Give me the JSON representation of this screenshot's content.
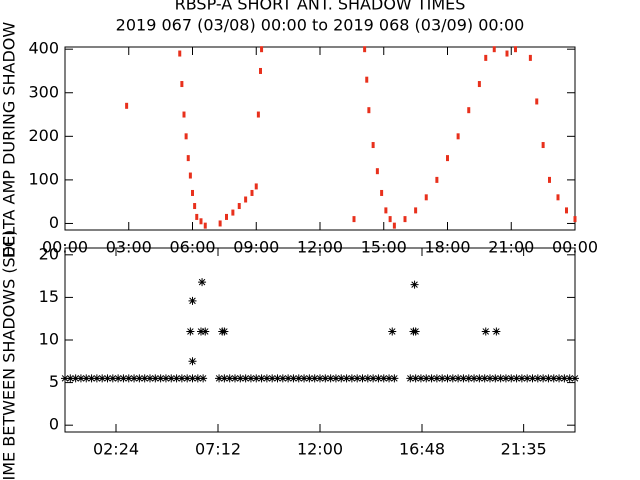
{
  "chart_data": [
    {
      "type": "scatter",
      "title": "RBSP-A SHORT ANT. SHADOW TIMES",
      "subtitle": "2019 067 (03/08) 00:00 to 2019 068 (03/09) 00:00",
      "ylabel": "DELTA AMP DURING SHADOW",
      "color": "#e8301c",
      "marker": "dot",
      "x": [
        2.9,
        5.4,
        5.5,
        5.6,
        5.7,
        5.8,
        5.9,
        6.0,
        6.1,
        6.2,
        6.4,
        6.6,
        7.3,
        7.6,
        7.9,
        8.2,
        8.5,
        8.8,
        9.0,
        9.1,
        9.2,
        9.25,
        13.6,
        14.1,
        14.2,
        14.3,
        14.5,
        14.7,
        14.9,
        15.1,
        15.3,
        15.5,
        16.0,
        16.5,
        17.0,
        17.5,
        18.0,
        18.5,
        19.0,
        19.5,
        19.8,
        20.2,
        20.8,
        21.2,
        21.9,
        22.2,
        22.5,
        22.8,
        23.2,
        23.6,
        24
      ],
      "values": [
        270,
        390,
        320,
        250,
        200,
        150,
        110,
        70,
        40,
        15,
        5,
        -5,
        0,
        15,
        25,
        40,
        55,
        70,
        85,
        250,
        350,
        400,
        10,
        400,
        330,
        260,
        180,
        120,
        70,
        30,
        10,
        -5,
        10,
        30,
        60,
        100,
        150,
        200,
        260,
        320,
        380,
        400,
        390,
        400,
        380,
        280,
        180,
        100,
        60,
        30,
        10
      ],
      "xlim": [
        0,
        24
      ],
      "ylim": [
        -15,
        405
      ],
      "xticks": [
        {
          "value": 0,
          "label": "00:00"
        },
        {
          "value": 3,
          "label": "03:00"
        },
        {
          "value": 6,
          "label": "06:00"
        },
        {
          "value": 9,
          "label": "09:00"
        },
        {
          "value": 12,
          "label": "12:00"
        },
        {
          "value": 15,
          "label": "15:00"
        },
        {
          "value": 18,
          "label": "18:00"
        },
        {
          "value": 21,
          "label": "21:00"
        },
        {
          "value": 24,
          "label": "00:00"
        }
      ],
      "yticks": [
        0,
        100,
        200,
        300,
        400
      ]
    },
    {
      "type": "scatter",
      "ylabel": "TIME BETWEEN SHADOWS (SEC)",
      "color": "#000000",
      "marker": "asterisk",
      "x": [
        0,
        0.25,
        0.5,
        0.75,
        1,
        1.25,
        1.5,
        1.75,
        2,
        2.25,
        2.5,
        2.75,
        3,
        3.25,
        3.5,
        3.75,
        4,
        4.25,
        4.5,
        4.75,
        5,
        5.25,
        5.5,
        5.75,
        6,
        6.25,
        6.5,
        7.25,
        7.5,
        7.75,
        8,
        8.25,
        8.5,
        8.75,
        9,
        9.25,
        9.5,
        9.75,
        10,
        10.25,
        10.5,
        10.75,
        11,
        11.25,
        11.5,
        11.75,
        12,
        12.25,
        12.5,
        12.75,
        13,
        13.25,
        13.5,
        13.75,
        14,
        14.25,
        14.5,
        14.75,
        15,
        15.25,
        15.5,
        16.25,
        16.5,
        16.75,
        17,
        17.25,
        17.5,
        17.75,
        18,
        18.25,
        18.5,
        18.75,
        19,
        19.25,
        19.5,
        19.75,
        20,
        20.25,
        20.5,
        20.75,
        21,
        21.25,
        21.5,
        21.75,
        22,
        22.25,
        22.5,
        22.75,
        23,
        23.25,
        23.5,
        23.75,
        24,
        5.9,
        6.0,
        6.0,
        6.45,
        6.6,
        6.4,
        7.4,
        7.5,
        15.4,
        16.4,
        16.5,
        16.45,
        19.8,
        20.3
      ],
      "values": [
        5.5,
        5.5,
        5.5,
        5.5,
        5.5,
        5.5,
        5.5,
        5.5,
        5.5,
        5.5,
        5.5,
        5.5,
        5.5,
        5.5,
        5.5,
        5.5,
        5.5,
        5.5,
        5.5,
        5.5,
        5.5,
        5.5,
        5.5,
        5.5,
        5.5,
        5.5,
        5.5,
        5.5,
        5.5,
        5.5,
        5.5,
        5.5,
        5.5,
        5.5,
        5.5,
        5.5,
        5.5,
        5.5,
        5.5,
        5.5,
        5.5,
        5.5,
        5.5,
        5.5,
        5.5,
        5.5,
        5.5,
        5.5,
        5.5,
        5.5,
        5.5,
        5.5,
        5.5,
        5.5,
        5.5,
        5.5,
        5.5,
        5.5,
        5.5,
        5.5,
        5.5,
        5.5,
        5.5,
        5.5,
        5.5,
        5.5,
        5.5,
        5.5,
        5.5,
        5.5,
        5.5,
        5.5,
        5.5,
        5.5,
        5.5,
        5.5,
        5.5,
        5.5,
        5.5,
        5.5,
        5.5,
        5.5,
        5.5,
        5.5,
        5.5,
        5.5,
        5.5,
        5.5,
        5.5,
        5.5,
        5.5,
        5.5,
        5.5,
        11,
        14.6,
        7.5,
        16.8,
        11,
        11,
        11,
        11,
        11,
        11,
        11,
        16.5,
        11,
        11
      ],
      "xlim": [
        0,
        24
      ],
      "ylim": [
        -0.8,
        20.8
      ],
      "xticks": [
        {
          "value": 2.4,
          "label": "02:24"
        },
        {
          "value": 7.2,
          "label": "07:12"
        },
        {
          "value": 12,
          "label": "12:00"
        },
        {
          "value": 16.8,
          "label": "16:48"
        },
        {
          "value": 21.583,
          "label": "21:35"
        }
      ],
      "yticks": [
        0,
        5,
        10,
        15,
        20
      ]
    }
  ]
}
